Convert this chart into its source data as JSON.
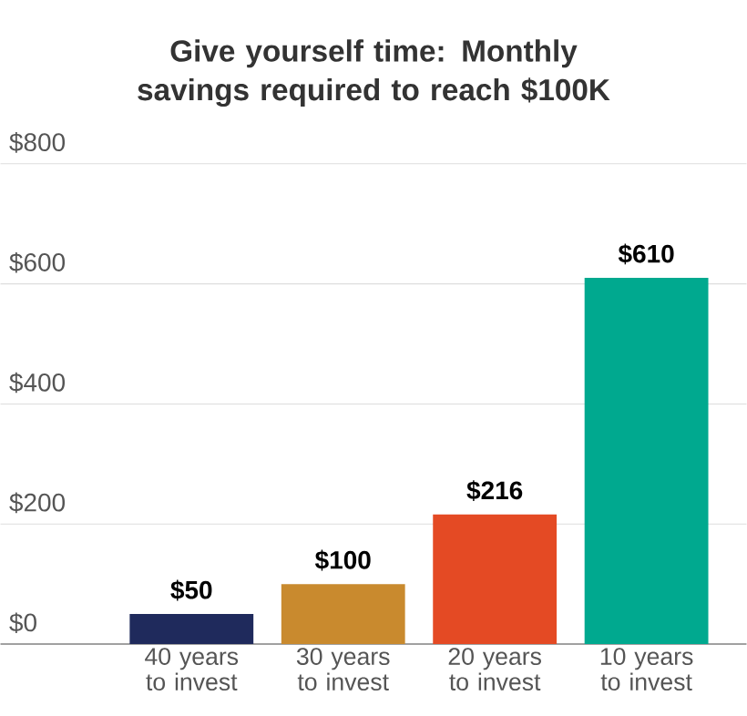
{
  "chart_data": {
    "type": "bar",
    "title": "Give yourself time:  Monthly savings required to reach $100K",
    "categories": [
      "40 years to invest",
      "30 years to invest",
      "20 years to invest",
      "10 years to invest"
    ],
    "values": [
      50,
      100,
      216,
      610
    ],
    "colors": [
      "#1f2a5c",
      "#c98a2e",
      "#e44a24",
      "#00a98f"
    ],
    "value_labels": [
      "$50",
      "$100",
      "$216",
      "$610"
    ],
    "ylim": [
      0,
      800
    ],
    "yticks": [
      {
        "value": 0,
        "label": "$0"
      },
      {
        "value": 200,
        "label": "$200"
      },
      {
        "value": 400,
        "label": "$400"
      },
      {
        "value": 600,
        "label": "$600"
      },
      {
        "value": 800,
        "label": "$800"
      }
    ],
    "grid": "y"
  }
}
